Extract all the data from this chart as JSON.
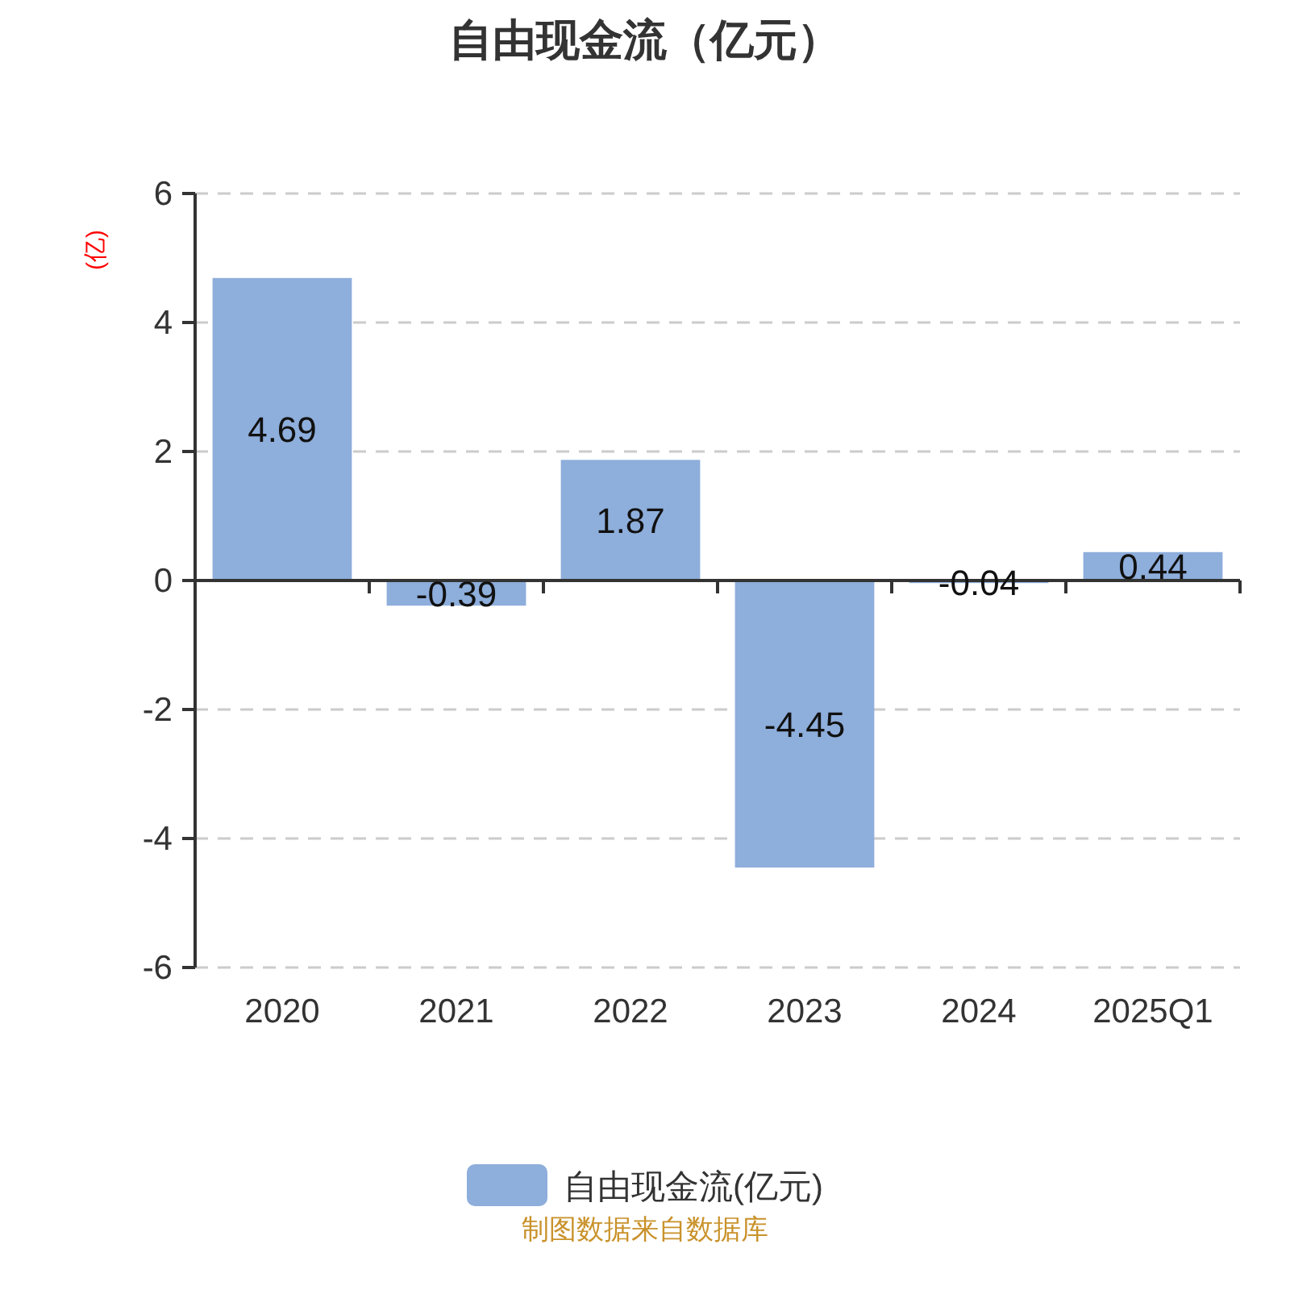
{
  "chart_data": {
    "type": "bar",
    "title": "自由现金流（亿元）",
    "ylabel": "(亿)",
    "categories": [
      "2020",
      "2021",
      "2022",
      "2023",
      "2024",
      "2025Q1"
    ],
    "series": [
      {
        "name": "自由现金流(亿元)",
        "color": "#8eaedb",
        "values": [
          4.69,
          -0.39,
          1.87,
          -4.45,
          -0.04,
          0.44
        ]
      }
    ],
    "ylim": [
      -6,
      6
    ],
    "yticks": [
      -6,
      -4,
      -2,
      0,
      2,
      4,
      6
    ],
    "grid": "y",
    "legend": "bottom",
    "data_labels": true,
    "annotations": [
      "制图数据来自数据库"
    ]
  }
}
